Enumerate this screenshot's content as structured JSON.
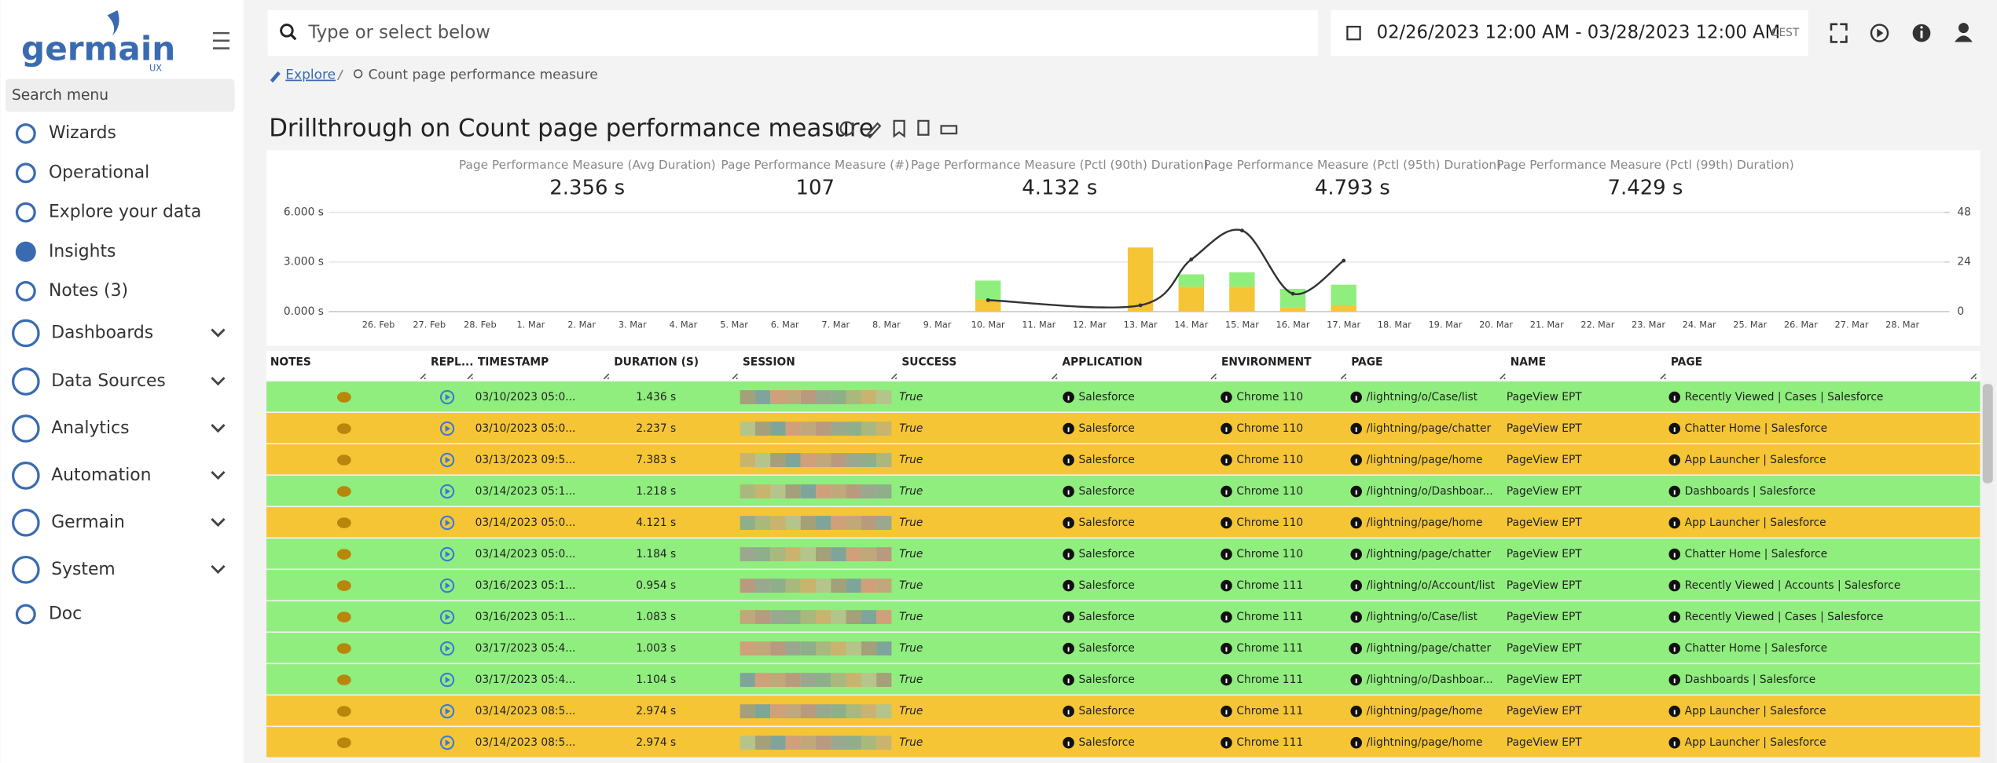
{
  "sidebar": {
    "logo": "germain",
    "logo_sub": "UX",
    "search_placeholder": "Search menu",
    "menu": [
      {
        "label": "Wizards",
        "expandable": false
      },
      {
        "label": "Operational",
        "expandable": false
      },
      {
        "label": "Explore your data",
        "expandable": false
      },
      {
        "label": "Insights",
        "expandable": false
      },
      {
        "label": "Notes (3)",
        "expandable": false
      },
      {
        "label": "Dashboards",
        "expandable": true
      },
      {
        "label": "Data Sources",
        "expandable": true
      },
      {
        "label": "Analytics",
        "expandable": true
      },
      {
        "label": "Automation",
        "expandable": true
      },
      {
        "label": "Germain",
        "expandable": true
      },
      {
        "label": "System",
        "expandable": true
      },
      {
        "label": "Doc",
        "expandable": false
      }
    ]
  },
  "header": {
    "search_placeholder": "Type or select below",
    "date_range": "02/26/2023 12:00 AM - 03/28/2023 12:00 AM",
    "timezone": "CEST"
  },
  "breadcrumb": [
    "Explore",
    "Count page performance measure"
  ],
  "title": "Drillthrough on Count page performance measure",
  "kpis": [
    {
      "label": "Page Performance Measure (Avg Duration)",
      "value": "2.356 s"
    },
    {
      "label": "Page Performance Measure (#)",
      "value": "107"
    },
    {
      "label": "Page Performance Measure (Pctl (90th) Duration)",
      "value": "4.132 s"
    },
    {
      "label": "Page Performance Measure (Pctl (95th) Duration)",
      "value": "4.793 s"
    },
    {
      "label": "Page Performance Measure (Pctl (99th) Duration)",
      "value": "7.429 s"
    }
  ],
  "chart_data": {
    "type": "combo",
    "categories": [
      "26. Feb",
      "27. Feb",
      "28. Feb",
      "1. Mar",
      "2. Mar",
      "3. Mar",
      "4. Mar",
      "5. Mar",
      "6. Mar",
      "7. Mar",
      "8. Mar",
      "9. Mar",
      "10. Mar",
      "11. Mar",
      "12. Mar",
      "13. Mar",
      "14. Mar",
      "15. Mar",
      "16. Mar",
      "17. Mar",
      "18. Mar",
      "19. Mar",
      "20. Mar",
      "21. Mar",
      "22. Mar",
      "23. Mar",
      "24. Mar",
      "25. Mar",
      "26. Mar",
      "27. Mar",
      "28. Mar"
    ],
    "ylim": [
      0,
      6
    ],
    "yticks": [
      {
        "value": 0,
        "label": "0.000 s"
      },
      {
        "value": 3,
        "label": "3.000 s"
      },
      {
        "value": 6,
        "label": "6.000 s"
      }
    ],
    "y2lim": [
      0,
      48
    ],
    "y2ticks": [
      0,
      24,
      48
    ],
    "grid": true,
    "series": [
      {
        "type": "bar",
        "axis": "y2",
        "color": "#f5c535",
        "x": [
          "10. Mar",
          "13. Mar",
          "14. Mar",
          "15. Mar",
          "16. Mar",
          "17. Mar"
        ],
        "values": [
          6,
          31,
          12,
          12,
          2,
          3
        ]
      },
      {
        "type": "bar",
        "axis": "y2",
        "color": "#90ee7e",
        "x": [
          "10. Mar",
          "13. Mar",
          "14. Mar",
          "15. Mar",
          "16. Mar",
          "17. Mar"
        ],
        "values": [
          9,
          0,
          6,
          7,
          9,
          10
        ]
      },
      {
        "type": "line",
        "axis": "y",
        "color": "#333333",
        "x": [
          "10. Mar",
          "13. Mar",
          "14. Mar",
          "15. Mar",
          "16. Mar",
          "17. Mar"
        ],
        "values": [
          0.69,
          0.38,
          3.15,
          4.9,
          1.08,
          3.08
        ]
      }
    ]
  },
  "table": {
    "columns": [
      "NOTES",
      "REPL...",
      "TIMESTAMP",
      "DURATION (S)",
      "SESSION",
      "SUCCESS",
      "APPLICATION",
      "ENVIRONMENT",
      "PAGE",
      "NAME",
      "PAGE"
    ],
    "rows": [
      {
        "color": "#90ee7e",
        "timestamp": "03/10/2023 05:0...",
        "duration": "1.436 s",
        "success": "True",
        "application": "Salesforce",
        "environment": "Chrome 110",
        "page": "/lightning/o/Case/list",
        "name": "PageView EPT",
        "page_title": "Recently Viewed | Cases | Salesforce"
      },
      {
        "color": "#f5c535",
        "timestamp": "03/10/2023 05:0...",
        "duration": "2.237 s",
        "success": "True",
        "application": "Salesforce",
        "environment": "Chrome 110",
        "page": "/lightning/page/chatter",
        "name": "PageView EPT",
        "page_title": "Chatter Home | Salesforce"
      },
      {
        "color": "#f5c535",
        "timestamp": "03/13/2023 09:5...",
        "duration": "7.383 s",
        "success": "True",
        "application": "Salesforce",
        "environment": "Chrome 110",
        "page": "/lightning/page/home",
        "name": "PageView EPT",
        "page_title": "App Launcher | Salesforce"
      },
      {
        "color": "#90ee7e",
        "timestamp": "03/14/2023 05:1...",
        "duration": "1.218 s",
        "success": "True",
        "application": "Salesforce",
        "environment": "Chrome 110",
        "page": "/lightning/o/Dashboar...",
        "name": "PageView EPT",
        "page_title": "Dashboards | Salesforce"
      },
      {
        "color": "#f5c535",
        "timestamp": "03/14/2023 05:0...",
        "duration": "4.121 s",
        "success": "True",
        "application": "Salesforce",
        "environment": "Chrome 110",
        "page": "/lightning/page/home",
        "name": "PageView EPT",
        "page_title": "App Launcher | Salesforce"
      },
      {
        "color": "#90ee7e",
        "timestamp": "03/14/2023 05:0...",
        "duration": "1.184 s",
        "success": "True",
        "application": "Salesforce",
        "environment": "Chrome 110",
        "page": "/lightning/page/chatter",
        "name": "PageView EPT",
        "page_title": "Chatter Home | Salesforce"
      },
      {
        "color": "#90ee7e",
        "timestamp": "03/16/2023 05:1...",
        "duration": "0.954 s",
        "success": "True",
        "application": "Salesforce",
        "environment": "Chrome 111",
        "page": "/lightning/o/Account/list",
        "name": "PageView EPT",
        "page_title": "Recently Viewed | Accounts | Salesforce"
      },
      {
        "color": "#90ee7e",
        "timestamp": "03/16/2023 05:1...",
        "duration": "1.083 s",
        "success": "True",
        "application": "Salesforce",
        "environment": "Chrome 111",
        "page": "/lightning/o/Case/list",
        "name": "PageView EPT",
        "page_title": "Recently Viewed | Cases | Salesforce"
      },
      {
        "color": "#90ee7e",
        "timestamp": "03/17/2023 05:4...",
        "duration": "1.003 s",
        "success": "True",
        "application": "Salesforce",
        "environment": "Chrome 111",
        "page": "/lightning/page/chatter",
        "name": "PageView EPT",
        "page_title": "Chatter Home | Salesforce"
      },
      {
        "color": "#90ee7e",
        "timestamp": "03/17/2023 05:4...",
        "duration": "1.104 s",
        "success": "True",
        "application": "Salesforce",
        "environment": "Chrome 111",
        "page": "/lightning/o/Dashboar...",
        "name": "PageView EPT",
        "page_title": "Dashboards | Salesforce"
      },
      {
        "color": "#f5c535",
        "timestamp": "03/14/2023 08:5...",
        "duration": "2.974 s",
        "success": "True",
        "application": "Salesforce",
        "environment": "Chrome 111",
        "page": "/lightning/page/home",
        "name": "PageView EPT",
        "page_title": "App Launcher | Salesforce"
      },
      {
        "color": "#f5c535",
        "timestamp": "03/14/2023 08:5...",
        "duration": "2.974 s",
        "success": "True",
        "application": "Salesforce",
        "environment": "Chrome 111",
        "page": "/lightning/page/home",
        "name": "PageView EPT",
        "page_title": "App Launcher | Salesforce"
      }
    ]
  }
}
